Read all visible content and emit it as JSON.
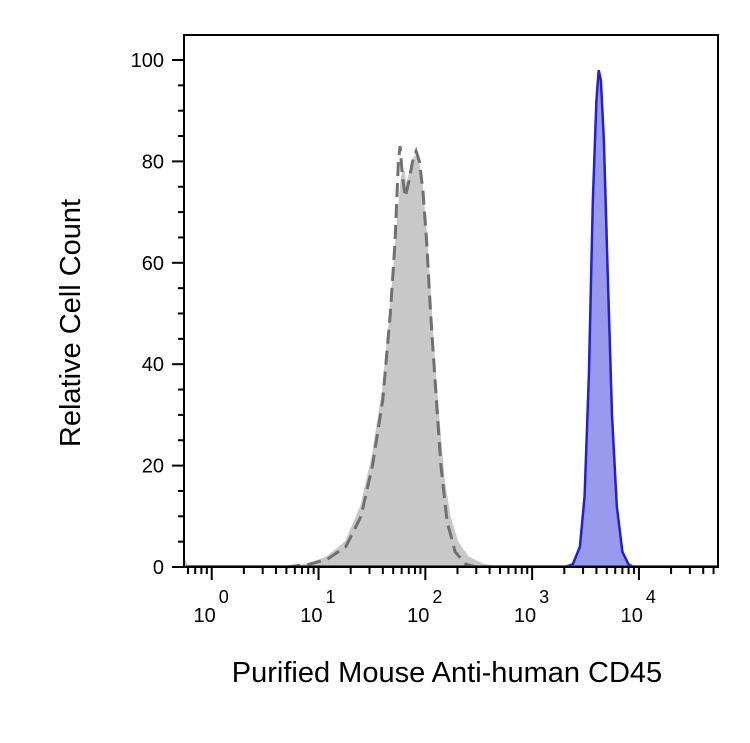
{
  "chart_data": {
    "type": "area",
    "xlabel": "Purified Mouse Anti-human CD45",
    "ylabel": "Relative Cell Count",
    "x_scale": "log",
    "xlim": [
      0.55,
      55000
    ],
    "ylim": [
      0,
      105
    ],
    "y_ticks": [
      0,
      20,
      40,
      60,
      80,
      100
    ],
    "x_ticks": [
      {
        "value": 1,
        "base": "10",
        "exp": "0"
      },
      {
        "value": 10,
        "base": "10",
        "exp": "1"
      },
      {
        "value": 100,
        "base": "10",
        "exp": "2"
      },
      {
        "value": 1000,
        "base": "10",
        "exp": "3"
      },
      {
        "value": 10000,
        "base": "10",
        "exp": "4"
      }
    ],
    "grid": false,
    "series": [
      {
        "style": "filled-gray",
        "color": "#c8c8c8",
        "edge_color": "#c8c8c8",
        "points": [
          [
            0.55,
            1.5
          ],
          [
            0.6,
            0
          ],
          [
            5,
            0
          ],
          [
            8,
            0.5
          ],
          [
            12,
            2
          ],
          [
            18,
            5
          ],
          [
            25,
            12
          ],
          [
            32,
            22
          ],
          [
            40,
            35
          ],
          [
            46,
            48
          ],
          [
            52,
            62
          ],
          [
            57,
            72
          ],
          [
            60,
            77
          ],
          [
            63,
            78
          ],
          [
            66,
            75
          ],
          [
            70,
            77
          ],
          [
            75,
            80
          ],
          [
            80,
            81
          ],
          [
            86,
            80
          ],
          [
            92,
            76
          ],
          [
            100,
            68
          ],
          [
            110,
            55
          ],
          [
            120,
            42
          ],
          [
            135,
            28
          ],
          [
            150,
            17
          ],
          [
            170,
            10
          ],
          [
            200,
            5
          ],
          [
            250,
            2
          ],
          [
            350,
            0.5
          ],
          [
            500,
            0
          ],
          [
            55000,
            0
          ]
        ]
      },
      {
        "style": "dashed-outline",
        "color": "#707070",
        "points": [
          [
            5,
            0
          ],
          [
            8,
            0.5
          ],
          [
            12,
            1.5
          ],
          [
            18,
            4
          ],
          [
            25,
            10
          ],
          [
            32,
            20
          ],
          [
            40,
            33
          ],
          [
            47,
            50
          ],
          [
            52,
            64
          ],
          [
            56,
            80
          ],
          [
            58,
            83
          ],
          [
            61,
            77
          ],
          [
            65,
            73
          ],
          [
            70,
            76
          ],
          [
            76,
            80
          ],
          [
            82,
            82
          ],
          [
            88,
            80
          ],
          [
            95,
            74
          ],
          [
            103,
            64
          ],
          [
            112,
            50
          ],
          [
            125,
            35
          ],
          [
            140,
            20
          ],
          [
            160,
            9
          ],
          [
            190,
            3
          ],
          [
            240,
            0.5
          ],
          [
            300,
            0
          ]
        ]
      },
      {
        "style": "filled-blue",
        "color": "#9999ee",
        "edge_color": "#2222cc",
        "points": [
          [
            2000,
            0
          ],
          [
            2400,
            0.5
          ],
          [
            2800,
            4
          ],
          [
            3100,
            14
          ],
          [
            3400,
            38
          ],
          [
            3700,
            72
          ],
          [
            4000,
            92
          ],
          [
            4200,
            98
          ],
          [
            4400,
            96
          ],
          [
            4700,
            84
          ],
          [
            5100,
            58
          ],
          [
            5600,
            30
          ],
          [
            6200,
            12
          ],
          [
            7000,
            3
          ],
          [
            8000,
            0.5
          ],
          [
            9000,
            0
          ]
        ]
      }
    ]
  }
}
